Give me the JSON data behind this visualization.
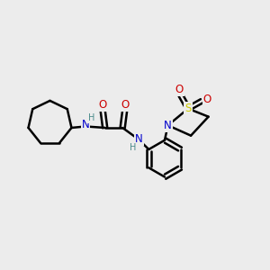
{
  "background_color": "#ececec",
  "bond_color": "#000000",
  "bond_width": 1.8,
  "N_color": "#0000cc",
  "O_color": "#cc0000",
  "S_color": "#cccc00",
  "H_color": "#4a8a8a",
  "figsize": [
    3.0,
    3.0
  ],
  "dpi": 100,
  "xlim": [
    0,
    10
  ],
  "ylim": [
    0,
    10
  ],
  "font_size": 8.5
}
